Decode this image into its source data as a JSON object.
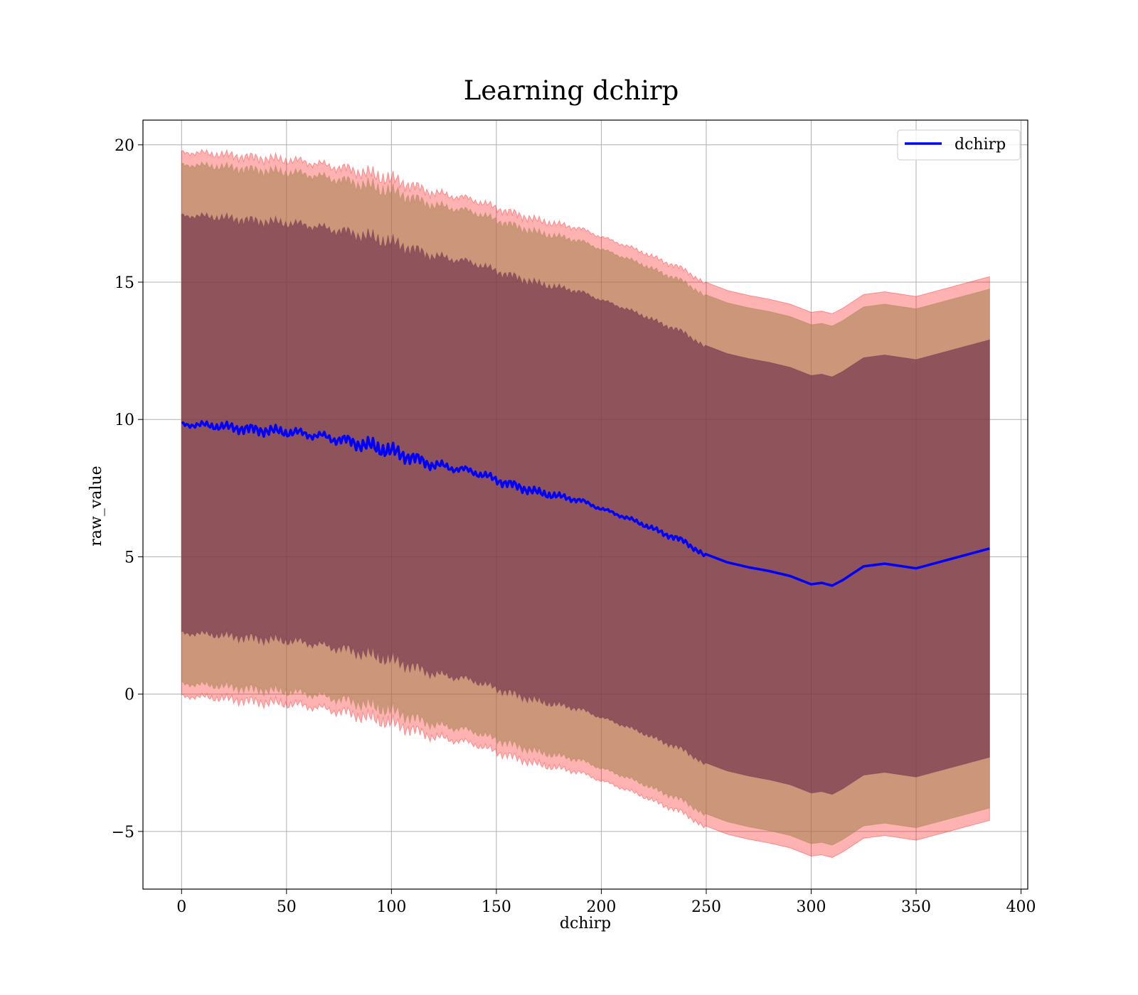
{
  "chart_data": {
    "type": "line",
    "title": "Learning dchirp",
    "xlabel": "dchirp",
    "ylabel": "raw_value",
    "xlim": [
      -18.4,
      403.2
    ],
    "ylim": [
      -7.1,
      20.9
    ],
    "xticks": [
      0,
      50,
      100,
      150,
      200,
      250,
      300,
      350,
      400
    ],
    "yticks": [
      -5,
      0,
      5,
      10,
      15,
      20
    ],
    "ytick_labels": [
      "−5",
      "0",
      "5",
      "10",
      "15",
      "20"
    ],
    "grid": true,
    "legend": {
      "position": "top-right",
      "entries": [
        "dchirp"
      ]
    },
    "colors": {
      "line": "#0000ff",
      "band_outer": "#ff0000",
      "band_mid": "#a0804a",
      "band_inner": "#6b2a4a",
      "frame": "#000000",
      "grid": "#b0b0b0"
    },
    "x": [
      0,
      10,
      20,
      30,
      40,
      50,
      60,
      70,
      80,
      90,
      100,
      110,
      120,
      130,
      140,
      150,
      160,
      170,
      180,
      190,
      200,
      210,
      220,
      230,
      240,
      250,
      260,
      270,
      280,
      290,
      300,
      305,
      310,
      315,
      320,
      325,
      335,
      350,
      385
    ],
    "series": [
      {
        "name": "dchirp",
        "values": [
          9.82,
          9.8,
          9.74,
          9.66,
          9.6,
          9.55,
          9.47,
          9.34,
          9.2,
          9.03,
          8.85,
          8.6,
          8.35,
          8.23,
          8.08,
          7.8,
          7.56,
          7.34,
          7.2,
          7.05,
          6.75,
          6.48,
          6.18,
          5.84,
          5.55,
          4.98,
          4.8,
          4.62,
          4.48,
          4.3,
          4.0,
          4.05,
          3.95,
          4.15,
          4.4,
          4.65,
          4.75,
          4.58,
          5.3
        ]
      }
    ],
    "bands": [
      {
        "level": "outer",
        "halfwidth": 9.9
      },
      {
        "level": "middle",
        "halfwidth": 9.45
      },
      {
        "level": "inner",
        "halfwidth": 7.6
      }
    ]
  }
}
